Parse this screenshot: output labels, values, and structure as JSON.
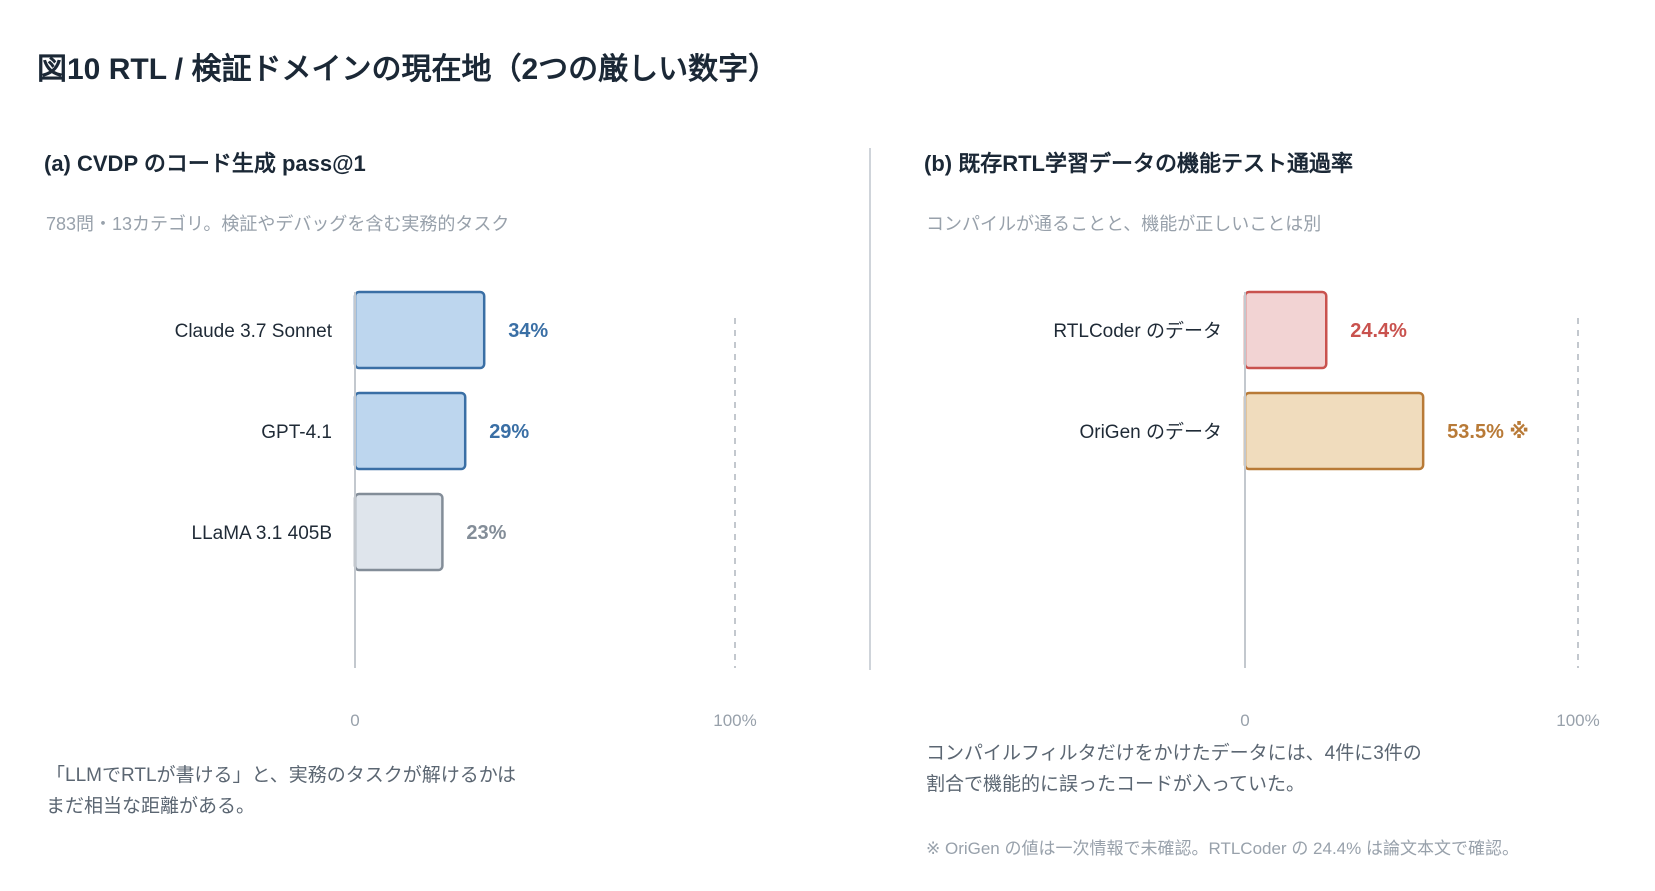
{
  "title": "図10  RTL / 検証ドメインの現在地（2つの厳しい数字）",
  "panels": [
    {
      "title": "(a) CVDP のコード生成 pass@1",
      "subtitle": "783問・13カテゴリ。検証やデバッグを含む実務的タスク",
      "note_lines": [
        "「LLMでRTLが書ける」と、実務のタスクが解けるかは",
        "まだ相当な距離がある。"
      ]
    },
    {
      "title": "(b) 既存RTL学習データの機能テスト通過率",
      "subtitle": "コンパイルが通ることと、機能が正しいことは別",
      "note_lines": [
        "コンパイルフィルタだけをかけたデータには、4件に3件の",
        "割合で機能的に誤ったコードが入っていた。"
      ],
      "footnote": "※ OriGen の値は一次情報で未確認。RTLCoder の 24.4% は論文本文で確認。"
    }
  ],
  "chart_data": [
    {
      "type": "bar",
      "orientation": "horizontal",
      "categories": [
        "Claude 3.7 Sonnet",
        "GPT-4.1",
        "LLaMA 3.1 405B"
      ],
      "values": [
        34,
        29,
        23
      ],
      "value_labels": [
        "34%",
        "29%",
        "23%"
      ],
      "xlim": [
        0,
        100
      ],
      "x_tick_labels": [
        "0",
        "100%"
      ],
      "bar_fill": [
        "#bdd6ee",
        "#bdd6ee",
        "#dfe5ec"
      ],
      "bar_stroke": [
        "#3a6fa5",
        "#3a6fa5",
        "#838d98"
      ],
      "label_color": [
        "#3a6fa5",
        "#3a6fa5",
        "#838d98"
      ]
    },
    {
      "type": "bar",
      "orientation": "horizontal",
      "categories": [
        "RTLCoder のデータ",
        "OriGen のデータ"
      ],
      "values": [
        24.4,
        53.5
      ],
      "value_labels": [
        "24.4%",
        "53.5% ※"
      ],
      "xlim": [
        0,
        100
      ],
      "x_tick_labels": [
        "0",
        "100%"
      ],
      "bar_fill": [
        "#f2d3d3",
        "#f0dcbd"
      ],
      "bar_stroke": [
        "#c9524e",
        "#b87a37"
      ],
      "label_color": [
        "#c9524e",
        "#b87a37"
      ]
    }
  ]
}
